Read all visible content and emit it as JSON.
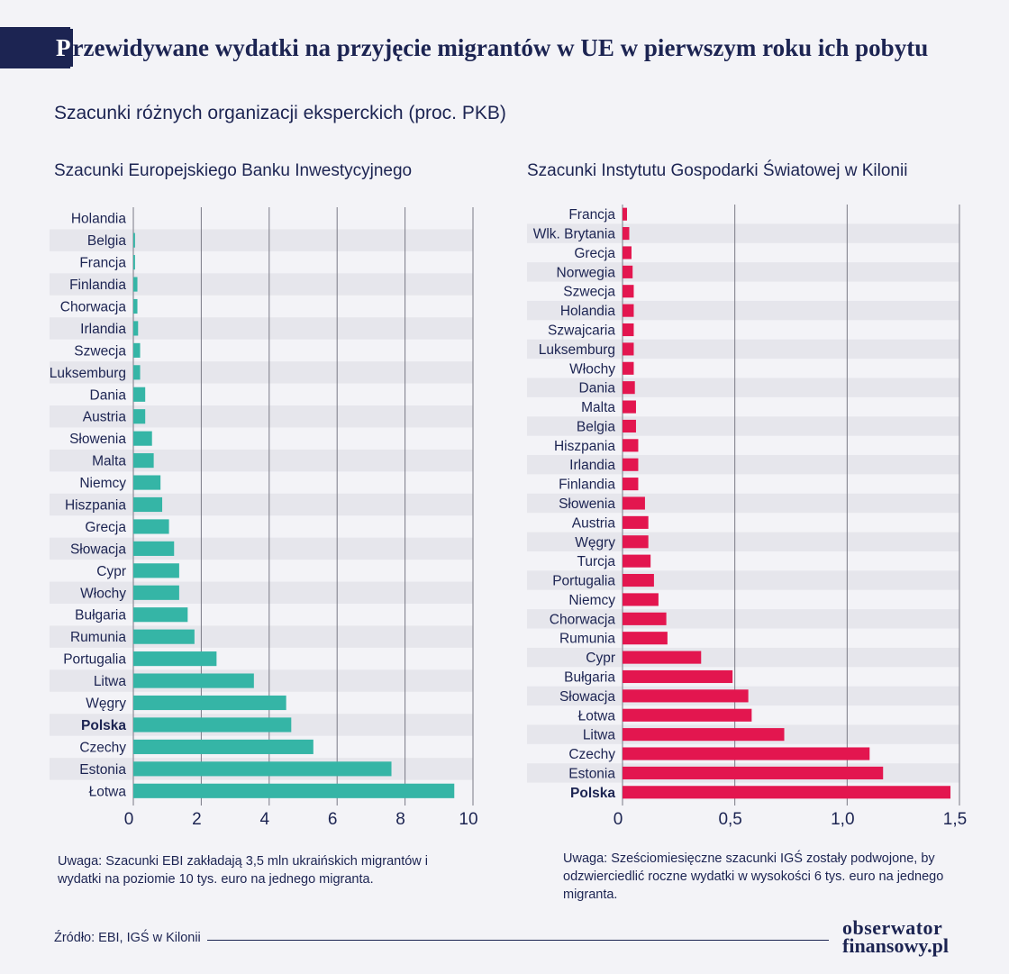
{
  "title": {
    "first_letter": "P",
    "rest": "rzewidywane wydatki na przyjęcie migrantów w UE w pierwszym roku ich pobytu"
  },
  "subtitle": "Szacunki różnych organizacji eksperckich (proc. PKB)",
  "colors": {
    "navy": "#1c2452",
    "teal": "#35b5a6",
    "red": "#e3164f",
    "stripe": "#e6e6ec",
    "grid": "#7a7a86"
  },
  "chart_data": [
    {
      "type": "bar",
      "orientation": "horizontal",
      "title": "Szacunki Europejskiego Banku Inwestycyjnego",
      "categories": [
        "Holandia",
        "Belgia",
        "Francja",
        "Finlandia",
        "Chorwacja",
        "Irlandia",
        "Szwecja",
        "Luksemburg",
        "Dania",
        "Austria",
        "Słowenia",
        "Malta",
        "Niemcy",
        "Hiszpania",
        "Grecja",
        "Słowacja",
        "Cypr",
        "Włochy",
        "Bułgaria",
        "Rumunia",
        "Portugalia",
        "Litwa",
        "Węgry",
        "Polska",
        "Czechy",
        "Estonia",
        "Łotwa"
      ],
      "values": [
        0.0,
        0.05,
        0.05,
        0.12,
        0.12,
        0.14,
        0.2,
        0.2,
        0.35,
        0.35,
        0.55,
        0.6,
        0.8,
        0.85,
        1.05,
        1.2,
        1.35,
        1.35,
        1.6,
        1.8,
        2.45,
        3.55,
        4.5,
        4.65,
        5.3,
        7.6,
        9.45
      ],
      "highlight": "Polska",
      "xlim": [
        0,
        10
      ],
      "xticks": [
        "0",
        "2",
        "4",
        "6",
        "8",
        "10"
      ],
      "xtick_values": [
        0,
        2,
        4,
        6,
        8,
        10
      ],
      "grid": true,
      "color": "#35b5a6"
    },
    {
      "type": "bar",
      "orientation": "horizontal",
      "title": "Szacunki Instytutu Gospodarki Światowej w Kilonii",
      "categories": [
        "Francja",
        "Wlk. Brytania",
        "Grecja",
        "Norwegia",
        "Szwecja",
        "Holandia",
        "Szwajcaria",
        "Luksemburg",
        "Włochy",
        "Dania",
        "Malta",
        "Belgia",
        "Hiszpania",
        "Irlandia",
        "Finlandia",
        "Słowenia",
        "Austria",
        "Węgry",
        "Turcja",
        "Portugalia",
        "Niemcy",
        "Chorwacja",
        "Rumunia",
        "Cypr",
        "Bułgaria",
        "Słowacja",
        "Łotwa",
        "Litwa",
        "Czechy",
        "Estonia",
        "Polska"
      ],
      "values": [
        0.02,
        0.03,
        0.04,
        0.045,
        0.05,
        0.05,
        0.05,
        0.05,
        0.05,
        0.055,
        0.06,
        0.06,
        0.07,
        0.07,
        0.07,
        0.1,
        0.115,
        0.115,
        0.125,
        0.14,
        0.16,
        0.195,
        0.2,
        0.35,
        0.49,
        0.56,
        0.575,
        0.72,
        1.1,
        1.16,
        1.46
      ],
      "highlight": "Polska",
      "xlim": [
        0,
        1.5
      ],
      "xticks": [
        "0",
        "0,5",
        "1,0",
        "1,5"
      ],
      "xtick_values": [
        0,
        0.5,
        1.0,
        1.5
      ],
      "grid": true,
      "color": "#e3164f"
    }
  ],
  "notes": {
    "left": "Uwaga: Szacunki EBI zakładają 3,5 mln ukraińskich migrantów i wydatki na poziomie 10 tys. euro na jednego migranta.",
    "right": "Uwaga: Sześciomiesięczne szacunki IGŚ zostały podwojone, by odzwierciedlić roczne wydatki w wysokości 6 tys. euro na jednego migranta."
  },
  "source": "Źródło: EBI, IGŚ w Kilonii",
  "logo": {
    "line1": "obserwator",
    "line2": "finansowy.pl"
  }
}
